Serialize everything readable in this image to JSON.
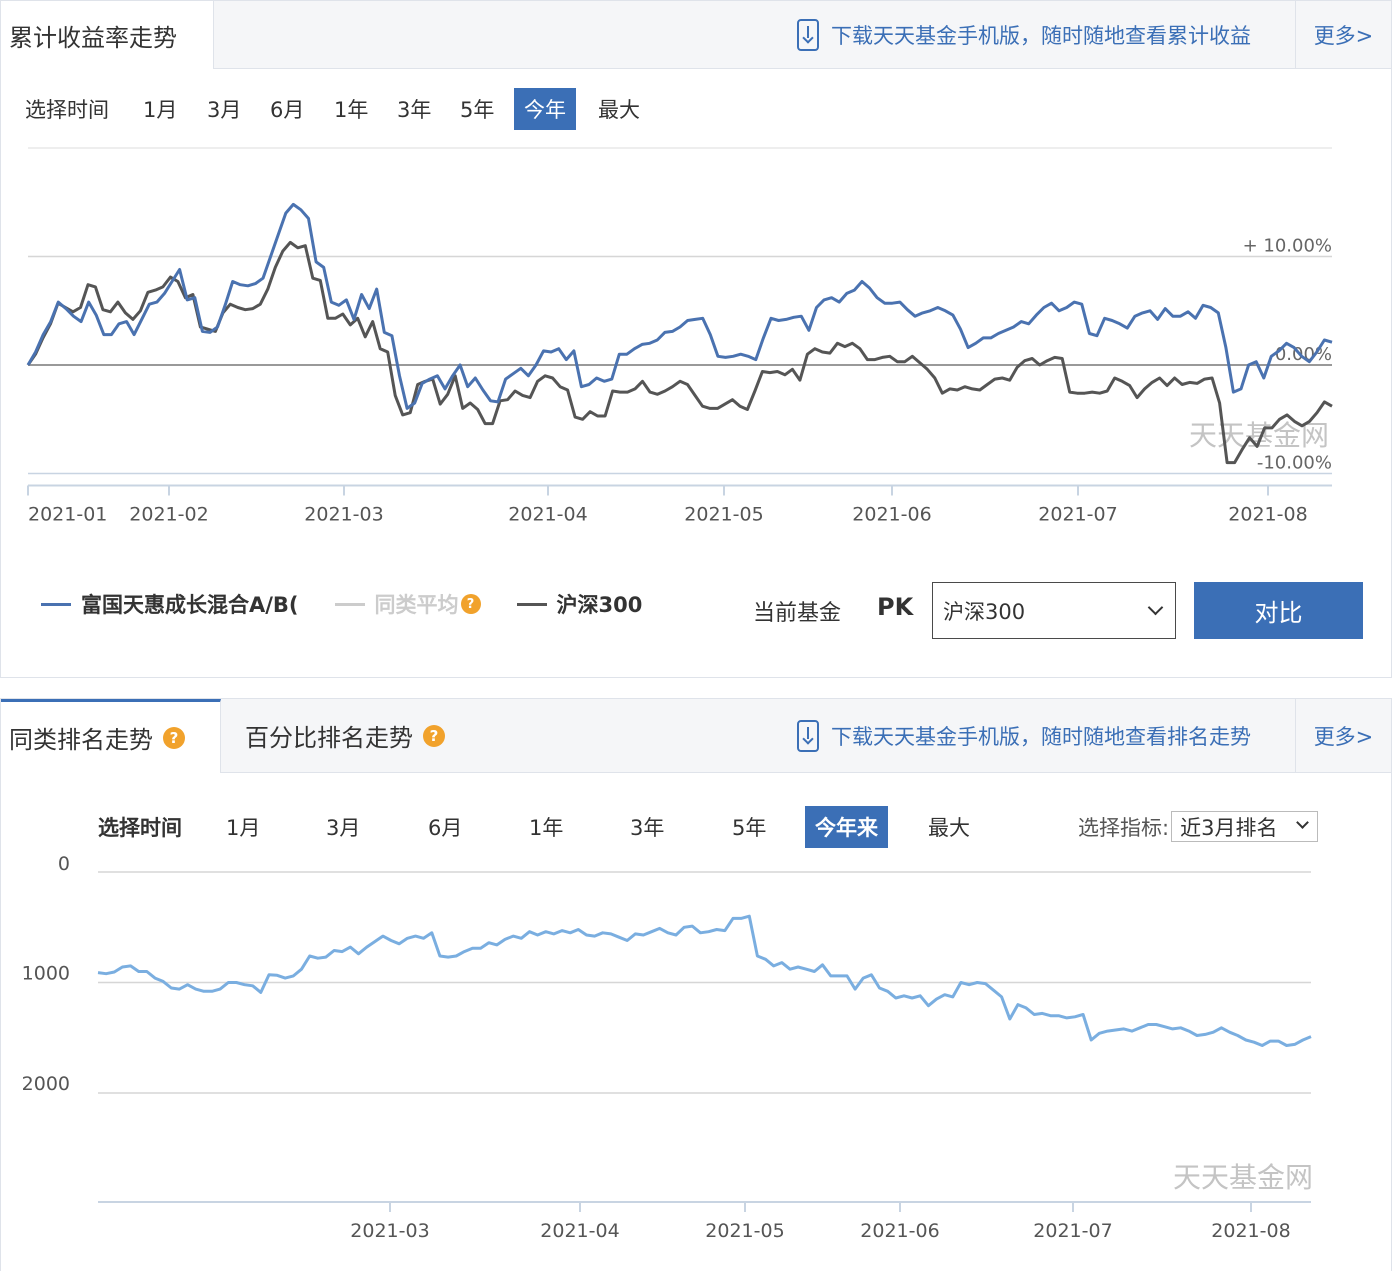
{
  "top": {
    "tab_title": "累计收益率走势",
    "download_text": "下载天天基金手机版，随时随地查看累计收益",
    "more_label": "更多>",
    "time_label": "选择时间",
    "time_options": [
      "1月",
      "3月",
      "6月",
      "1年",
      "3年",
      "5年",
      "今年",
      "最大"
    ],
    "time_selected": "今年",
    "legend": [
      {
        "name": "富国天惠成长混合A/B(",
        "color": "#4a72b0"
      },
      {
        "name": "同类平均",
        "color": "#cccccc"
      },
      {
        "name": "沪深300",
        "color": "#555555"
      }
    ],
    "pk_prefix": "当前基金",
    "pk": "PK",
    "compare_select_value": "沪深300",
    "compare_button": "对比",
    "watermark": "天天基金网"
  },
  "bottom": {
    "tab_active": "同类排名走势",
    "tab_other": "百分比排名走势",
    "download_text": "下载天天基金手机版，随时随地查看排名走势",
    "more_label": "更多>",
    "time_label": "选择时间",
    "time_options": [
      "1月",
      "3月",
      "6月",
      "1年",
      "3年",
      "5年",
      "今年来",
      "最大"
    ],
    "time_selected": "今年来",
    "indicator_label": "选择指标:",
    "indicator_value": "近3月排名",
    "watermark": "天天基金网"
  },
  "chart_data": [
    {
      "type": "line",
      "ylim": [
        -10,
        20
      ],
      "y_ticks": [
        10,
        0,
        -10
      ],
      "y_tick_labels": [
        "+ 10.00%",
        "0.00%",
        "-10.00%"
      ],
      "x_ticks": [
        "2021-01",
        "2021-02",
        "2021-03",
        "2021-04",
        "2021-05",
        "2021-06",
        "2021-07",
        "2021-08"
      ],
      "grid": true,
      "series": [
        {
          "name": "富国天惠成长混合A/B(",
          "color": "#4a72b0",
          "values": [
            0,
            1.2,
            2.8,
            4,
            5.8,
            5.2,
            4.5,
            4,
            5.8,
            4.6,
            2.8,
            2.8,
            3.8,
            4,
            2.8,
            4.2,
            5.6,
            5.8,
            6.6,
            7.7,
            8.8,
            6,
            6.2,
            3.1,
            3,
            3.5,
            5.5,
            7.7,
            7.4,
            7.3,
            7.5,
            8,
            10,
            12,
            14,
            14.8,
            14.3,
            13.5,
            9.5,
            9,
            5.8,
            5.5,
            6,
            4.2,
            6.5,
            5.2,
            7,
            3,
            2.7,
            -1,
            -4,
            -3.5,
            -1.7,
            -1.3,
            -1,
            -2.2,
            -1,
            0,
            -2,
            -1.2,
            -2.3,
            -3.3,
            -3.4,
            -1.3,
            -0.8,
            -0.3,
            -1,
            0,
            1.3,
            1.2,
            1.5,
            0.5,
            1.3,
            -2,
            -1.8,
            -1.2,
            -1.5,
            -1.3,
            1,
            1,
            1.5,
            1.9,
            2,
            2.3,
            3,
            3.1,
            3.5,
            4.1,
            4.2,
            4.3,
            2.8,
            0.8,
            0.7,
            0.8,
            1,
            0.8,
            0.5,
            2.5,
            4.3,
            4.1,
            4.2,
            4.4,
            4.5,
            3.2,
            5.3,
            6,
            6.2,
            5.8,
            6.6,
            6.9,
            7.7,
            7.1,
            6.2,
            5.7,
            5.7,
            5.8,
            5.1,
            4.5,
            4.8,
            5,
            5.3,
            5,
            4.6,
            3.3,
            1.6,
            2,
            2.5,
            2.5,
            2.9,
            3.2,
            3.5,
            4,
            3.8,
            4.6,
            5.3,
            5.7,
            5,
            5.3,
            5.8,
            5.6,
            2.9,
            2.7,
            4.3,
            4.1,
            3.8,
            3.4,
            4.5,
            4.8,
            5,
            4.2,
            5.2,
            4.5,
            4.5,
            4.9,
            4.3,
            5.5,
            5.3,
            4.8,
            1.6,
            -2.5,
            -2.2,
            0,
            0.3,
            -1.2,
            0.8,
            1.3,
            2,
            1.6,
            0.8,
            0.3,
            1.2,
            2.3,
            2.1
          ]
        },
        {
          "name": "沪深300",
          "color": "#555555",
          "values": [
            0,
            1,
            2.5,
            3.8,
            5.7,
            5.3,
            4.9,
            5.3,
            7.4,
            7.2,
            5.1,
            4.9,
            5.8,
            4.8,
            4.2,
            5,
            6.7,
            6.9,
            7.2,
            8.1,
            7.7,
            6.2,
            6.5,
            3.5,
            3.3,
            3.1,
            4.8,
            5.6,
            5.3,
            5.1,
            5.2,
            5.6,
            7,
            9,
            10.5,
            11.3,
            10.8,
            11,
            8,
            7.8,
            4.3,
            4.3,
            4.7,
            3.7,
            4.3,
            2.6,
            4,
            1.5,
            1.2,
            -2.8,
            -4.6,
            -4.4,
            -1.8,
            -1.5,
            -1.3,
            -3.6,
            -2.7,
            -1,
            -4,
            -3.5,
            -4.1,
            -5.4,
            -5.4,
            -3.3,
            -3.2,
            -2.4,
            -2.8,
            -3,
            -1.5,
            -1,
            -1.2,
            -2,
            -2.3,
            -4.8,
            -5,
            -4.3,
            -4.7,
            -4.7,
            -2.4,
            -2.5,
            -2.5,
            -2.2,
            -1.5,
            -2.5,
            -2.7,
            -2.4,
            -2,
            -1.5,
            -1.8,
            -2.8,
            -3.8,
            -4,
            -4,
            -3.6,
            -3.2,
            -3.8,
            -4.1,
            -2.4,
            -0.6,
            -0.7,
            -0.6,
            -0.9,
            -0.4,
            -1.4,
            1,
            1.5,
            1.2,
            1.1,
            2,
            1.7,
            2,
            1.5,
            0.5,
            0.5,
            0.7,
            0.8,
            0.3,
            0.3,
            0.8,
            0.2,
            -0.4,
            -1.2,
            -2.6,
            -2.2,
            -2.3,
            -2,
            -2.2,
            -2.3,
            -1.8,
            -1.3,
            -1.2,
            -1.4,
            -0.2,
            0.4,
            0.6,
            0,
            0.4,
            0.7,
            0.6,
            -2.5,
            -2.6,
            -2.6,
            -2.5,
            -2.6,
            -2.4,
            -1.2,
            -1.5,
            -1.9,
            -3,
            -2.2,
            -1.6,
            -1.2,
            -1.9,
            -1.2,
            -1.8,
            -1.6,
            -1.7,
            -1.3,
            -1.2,
            -3.5,
            -9,
            -9,
            -7.8,
            -6.7,
            -7.5,
            -5.8,
            -5.8,
            -5,
            -4.6,
            -5.2,
            -5.6,
            -5.2,
            -4.4,
            -3.4,
            -3.8
          ]
        }
      ]
    },
    {
      "type": "line",
      "ylim": [
        2000,
        0
      ],
      "y_ticks": [
        0,
        1000,
        2000
      ],
      "y_tick_labels": [
        "0",
        "1000",
        "2000"
      ],
      "x_ticks": [
        "2021-03",
        "2021-04",
        "2021-05",
        "2021-06",
        "2021-07",
        "2021-08"
      ],
      "grid": true,
      "series": [
        {
          "name": "近3月排名",
          "color": "#7aaee0",
          "values": [
            910,
            920,
            905,
            860,
            850,
            900,
            900,
            960,
            990,
            1050,
            1060,
            1020,
            1060,
            1080,
            1080,
            1060,
            1000,
            1000,
            1020,
            1030,
            1090,
            930,
            935,
            960,
            940,
            880,
            760,
            780,
            770,
            710,
            720,
            680,
            740,
            680,
            630,
            580,
            620,
            650,
            600,
            580,
            600,
            550,
            760,
            770,
            760,
            720,
            690,
            690,
            640,
            660,
            610,
            580,
            600,
            540,
            570,
            540,
            560,
            530,
            550,
            520,
            570,
            580,
            550,
            560,
            590,
            620,
            560,
            570,
            540,
            510,
            550,
            570,
            500,
            490,
            550,
            540,
            520,
            530,
            420,
            420,
            400,
            760,
            790,
            850,
            820,
            880,
            860,
            880,
            900,
            840,
            940,
            940,
            940,
            1060,
            960,
            930,
            1050,
            1080,
            1140,
            1120,
            1140,
            1120,
            1210,
            1150,
            1110,
            1130,
            1000,
            1020,
            1000,
            1010,
            1070,
            1130,
            1330,
            1200,
            1230,
            1290,
            1280,
            1300,
            1300,
            1320,
            1310,
            1290,
            1520,
            1460,
            1440,
            1430,
            1420,
            1440,
            1410,
            1380,
            1380,
            1400,
            1420,
            1410,
            1440,
            1480,
            1470,
            1450,
            1410,
            1450,
            1480,
            1520,
            1540,
            1570,
            1530,
            1530,
            1570,
            1560,
            1520,
            1490
          ]
        }
      ]
    }
  ]
}
